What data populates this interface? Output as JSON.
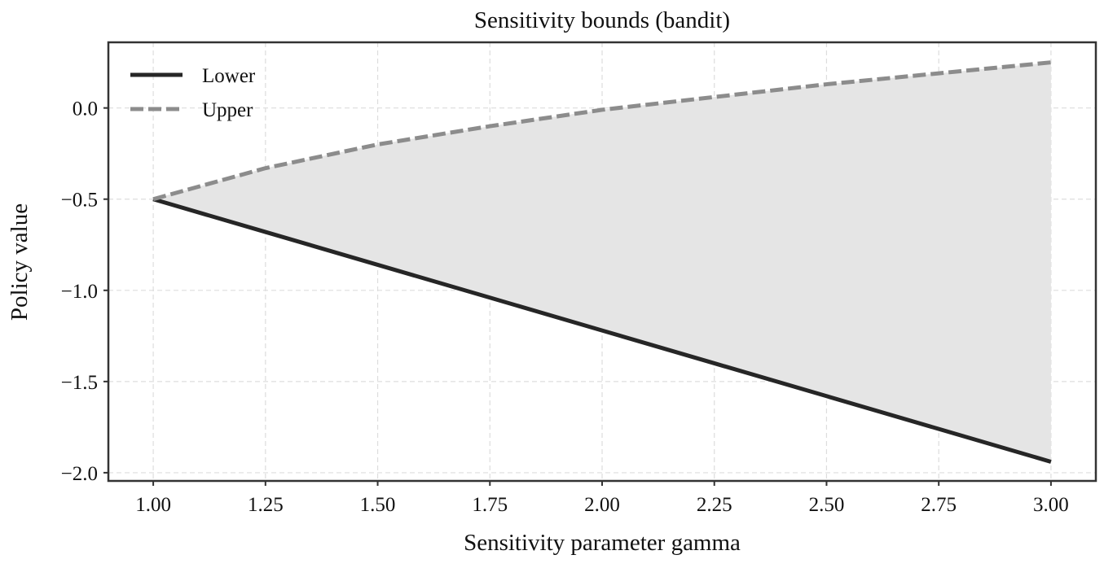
{
  "chart_data": {
    "type": "line",
    "title": "Sensitivity bounds (bandit)",
    "xlabel": "Sensitivity parameter gamma",
    "ylabel": "Policy value",
    "xlim": [
      0.9,
      3.1
    ],
    "ylim": [
      -2.045,
      0.36
    ],
    "xticks": [
      "1.00",
      "1.25",
      "1.50",
      "1.75",
      "2.00",
      "2.25",
      "2.50",
      "2.75",
      "3.00"
    ],
    "yticks": [
      "0.0",
      "−0.5",
      "−1.0",
      "−1.5",
      "−2.0"
    ],
    "grid": true,
    "legend_position": "top-left",
    "x": [
      1.0,
      1.25,
      1.5,
      1.75,
      2.0,
      2.25,
      2.5,
      2.75,
      3.0
    ],
    "series": [
      {
        "name": "Lower",
        "style": "solid",
        "color": "#262626",
        "values": [
          -0.5,
          -0.68,
          -0.86,
          -1.04,
          -1.22,
          -1.4,
          -1.58,
          -1.76,
          -1.94
        ]
      },
      {
        "name": "Upper",
        "style": "dashed",
        "color": "#8c8c8c",
        "values": [
          -0.5,
          -0.33,
          -0.2,
          -0.1,
          -0.01,
          0.06,
          0.13,
          0.19,
          0.25
        ]
      }
    ],
    "fill_between": {
      "color": "#e5e5e5"
    }
  }
}
